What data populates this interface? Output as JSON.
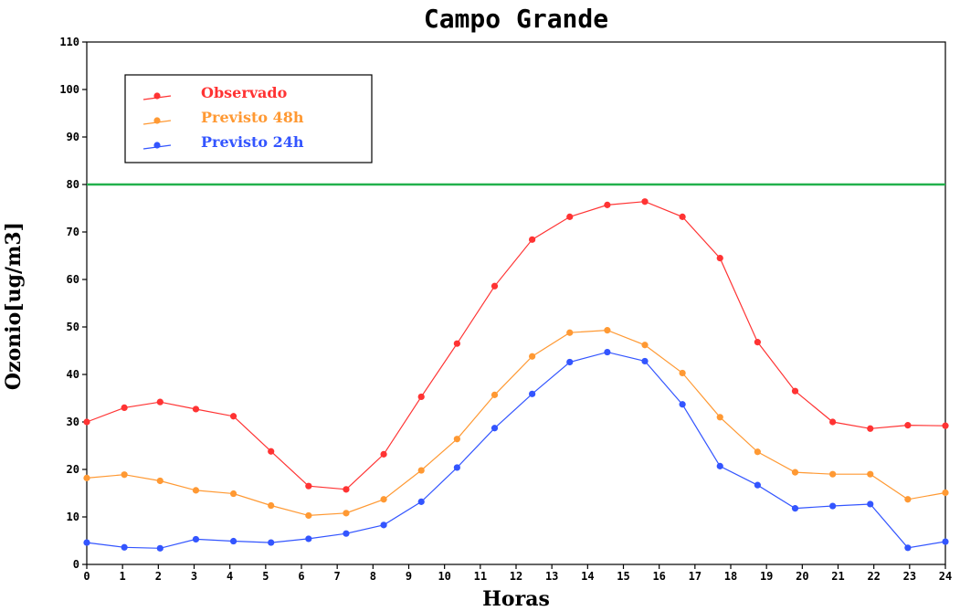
{
  "chart_data": {
    "type": "line",
    "title": "Campo Grande",
    "xlabel": "Horas",
    "ylabel": "Ozonio[ug/m3]",
    "xlim": [
      0,
      24
    ],
    "ylim": [
      0,
      110
    ],
    "xticks": [
      0,
      1,
      2,
      3,
      4,
      5,
      6,
      7,
      8,
      9,
      10,
      11,
      12,
      13,
      14,
      15,
      16,
      17,
      18,
      19,
      20,
      21,
      22,
      23,
      24
    ],
    "yticks": [
      0,
      10,
      20,
      30,
      40,
      50,
      60,
      70,
      80,
      90,
      100,
      110
    ],
    "grid": false,
    "legend_position": "top-left",
    "reference_line": {
      "y": 80,
      "color": "#22b14c"
    },
    "series": [
      {
        "name": "Observado",
        "color": "#ff3333",
        "x": [
          0,
          1.05,
          2.05,
          3.05,
          4.1,
          5.15,
          6.2,
          7.25,
          8.3,
          9.35,
          10.35,
          11.4,
          12.45,
          13.5,
          14.55,
          15.6,
          16.65,
          17.7,
          18.75,
          19.8,
          20.85,
          21.9,
          22.95,
          24
        ],
        "y": [
          30,
          33,
          34.2,
          32.7,
          31.2,
          23.8,
          16.5,
          15.8,
          23.2,
          35.3,
          46.5,
          58.6,
          68.4,
          73.2,
          75.7,
          76.4,
          73.2,
          64.5,
          46.8,
          36.5,
          30,
          28.6,
          29.3,
          29.2
        ]
      },
      {
        "name": "Previsto 48h",
        "color": "#ff9933",
        "x": [
          0,
          1.05,
          2.05,
          3.05,
          4.1,
          5.15,
          6.2,
          7.25,
          8.3,
          9.35,
          10.35,
          11.4,
          12.45,
          13.5,
          14.55,
          15.6,
          16.65,
          17.7,
          18.75,
          19.8,
          20.85,
          21.9,
          22.95,
          24
        ],
        "y": [
          18.2,
          18.9,
          17.6,
          15.6,
          14.9,
          12.4,
          10.3,
          10.8,
          13.7,
          19.8,
          26.4,
          35.7,
          43.8,
          48.8,
          49.3,
          46.2,
          40.3,
          31,
          23.7,
          19.4,
          19,
          19,
          13.7,
          15.1
        ]
      },
      {
        "name": "Previsto 24h",
        "color": "#3355ff",
        "x": [
          0,
          1.05,
          2.05,
          3.05,
          4.1,
          5.15,
          6.2,
          7.25,
          8.3,
          9.35,
          10.35,
          11.4,
          12.45,
          13.5,
          14.55,
          15.6,
          16.65,
          17.7,
          18.75,
          19.8,
          20.85,
          21.9,
          22.95,
          24
        ],
        "y": [
          4.6,
          3.6,
          3.4,
          5.3,
          4.9,
          4.6,
          5.4,
          6.5,
          8.3,
          13.2,
          20.4,
          28.7,
          35.9,
          42.6,
          44.7,
          42.8,
          33.7,
          20.7,
          16.7,
          11.8,
          12.3,
          12.7,
          3.5,
          4.8
        ]
      }
    ]
  }
}
